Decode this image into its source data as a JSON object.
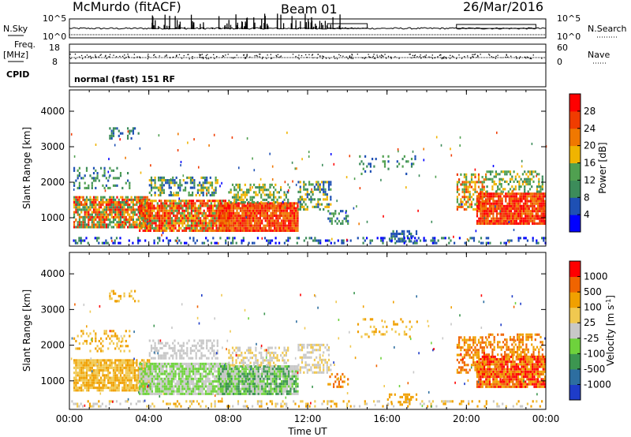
{
  "header": {
    "station": "McMurdo (fitACF)",
    "beam": "Beam 01",
    "date": "26/Mar/2016"
  },
  "top_strip": {
    "left_label": "N.Sky",
    "right_label": "N.Search",
    "left_ticks": [
      "10^5",
      "10^0"
    ],
    "right_ticks": [
      "10^5",
      "10^0"
    ]
  },
  "freq_strip": {
    "left_label_1": "Freq.",
    "left_label_2": "[MHz]",
    "right_label": "Nave",
    "left_ticks": [
      "18",
      "8"
    ],
    "right_ticks": [
      "60",
      "0"
    ]
  },
  "cpid": {
    "label": "CPID",
    "text": "normal (fast) 151 RF"
  },
  "chart_data": [
    {
      "type": "heatmap",
      "name": "power",
      "ylabel": "Slant Range [km]",
      "ylim": [
        200,
        4600
      ],
      "yticks": [
        1000,
        2000,
        3000,
        4000
      ],
      "colorbar_label": "Power [dB]",
      "colorbar_ticks": [
        "4",
        "8",
        "12",
        "16",
        "20",
        "24",
        "28"
      ],
      "colors": [
        "#0000ff",
        "#1e50b4",
        "#3c8c5a",
        "#50a050",
        "#f0b400",
        "#f07800",
        "#f03c00",
        "#ff0000"
      ]
    },
    {
      "type": "heatmap",
      "name": "velocity",
      "ylabel": "Slant Range [km]",
      "ylim": [
        200,
        4600
      ],
      "yticks": [
        1000,
        2000,
        3000,
        4000
      ],
      "colorbar_label": "Velocity [m s^-1]",
      "colorbar_ticks": [
        "1000",
        "500",
        "100",
        "25",
        "-25",
        "-100",
        "-500",
        "-1000"
      ],
      "colors": [
        "#1e3cc8",
        "#2d6ea0",
        "#3c9650",
        "#6ed23c",
        "#c8c8c8",
        "#f0c850",
        "#f0a000",
        "#f06400",
        "#ff0000"
      ]
    }
  ],
  "xaxis": {
    "label": "Time UT",
    "ticks": [
      "00:00",
      "04:00",
      "08:00",
      "12:00",
      "16:00",
      "20:00",
      "00:00"
    ]
  }
}
